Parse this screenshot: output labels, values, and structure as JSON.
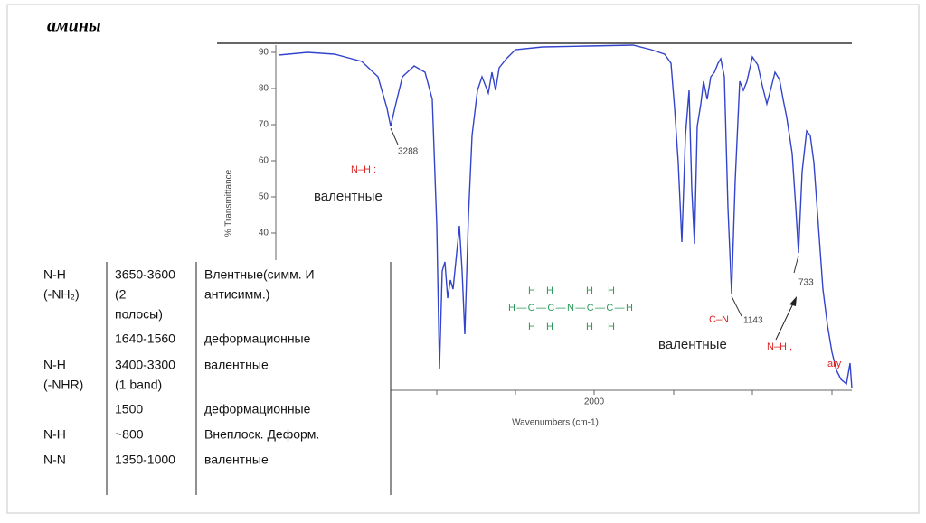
{
  "title": "амины",
  "spectrum": {
    "y_axis_label": "% Transmittance",
    "x_axis_label": "Wavenumbers (cm-1)",
    "y_tick_labels": [
      "90",
      "80",
      "70",
      "60",
      "50",
      "40"
    ],
    "x_tick_label": "2000",
    "annotations": {
      "peak_3288": "3288",
      "nh_stretch_label": "N–H :",
      "nh_stretch_text": "валентные",
      "cn_label": "C–N",
      "peak_1143": "1143",
      "cn_text": "валентные",
      "peak_733": "733",
      "nh_wag_label": "N–H ,",
      "ary_label": "ary"
    },
    "molecule": {
      "top": [
        "H",
        "H",
        "H",
        "H"
      ],
      "main": "H—C—C—N—C—C—H",
      "bottom": [
        "H",
        "H",
        "H",
        "H"
      ]
    }
  },
  "table": {
    "rows": [
      {
        "group": [
          "N-H",
          "(-NH₂)"
        ],
        "range": [
          "3650-3600",
          "(2",
          "полосы)"
        ],
        "mode": [
          "Влентные(симм. И",
          "антисимм.)"
        ]
      },
      {
        "range": [
          "1640-1560"
        ],
        "mode": [
          "деформационные"
        ]
      },
      {
        "group": [
          "N-H",
          "(-NHR)"
        ],
        "range": [
          "3400-3300",
          "(1 band)"
        ],
        "mode": [
          "валентные"
        ]
      },
      {
        "range": [
          "1500"
        ],
        "mode": [
          "деформационные"
        ]
      },
      {
        "group": [
          "N-H"
        ],
        "range": [
          "~800"
        ],
        "mode": [
          "Внеплоск. Деформ."
        ]
      },
      {
        "group": [
          "N-N"
        ],
        "range": [
          "1350-1000"
        ],
        "mode": [
          "валентные"
        ]
      }
    ]
  }
}
